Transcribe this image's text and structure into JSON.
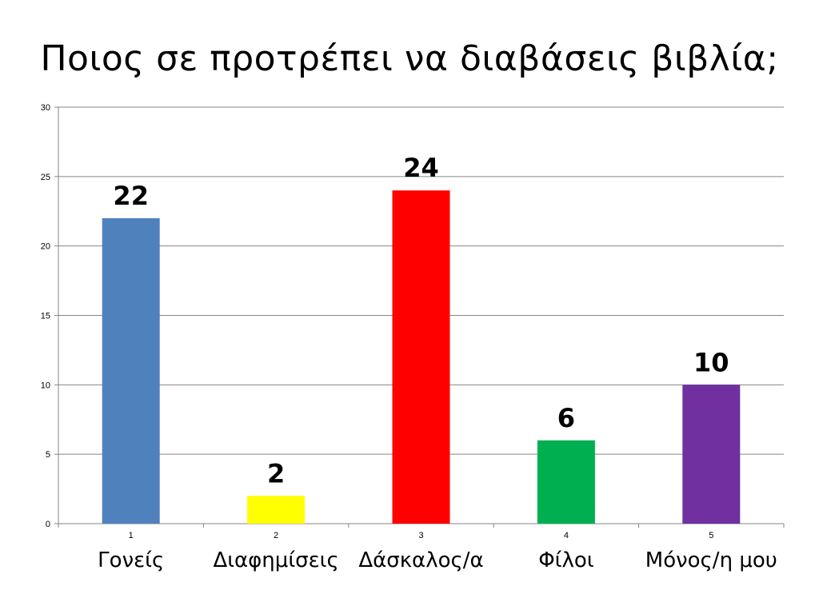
{
  "slide": {
    "title": "Ποιος σε προτρέπει να διαβάσεις βιβλία;"
  },
  "chart_data": {
    "type": "bar",
    "title": "Ποιος σε προτρέπει να διαβάσεις βιβλία;",
    "xlabel": "",
    "ylabel": "",
    "categories": [
      "1",
      "2",
      "3",
      "4",
      "5"
    ],
    "category_names": [
      "Γονείς",
      "Διαφημίσεις",
      "Δάσκαλος/α",
      "Φίλοι",
      "Μόνος/η μου"
    ],
    "values": [
      22,
      2,
      24,
      6,
      10
    ],
    "data_labels": [
      "22",
      "2",
      "24",
      "6",
      "10"
    ],
    "bar_colors": [
      "#4f81bd",
      "#ffff00",
      "#ff0000",
      "#00b050",
      "#7030a0"
    ],
    "ylim": [
      0,
      30
    ],
    "yticks": [
      0,
      5,
      10,
      15,
      20,
      25,
      30
    ],
    "ytick_labels": [
      "0",
      "5",
      "10",
      "15",
      "20",
      "25",
      "30"
    ],
    "grid": true,
    "legend": "none"
  }
}
